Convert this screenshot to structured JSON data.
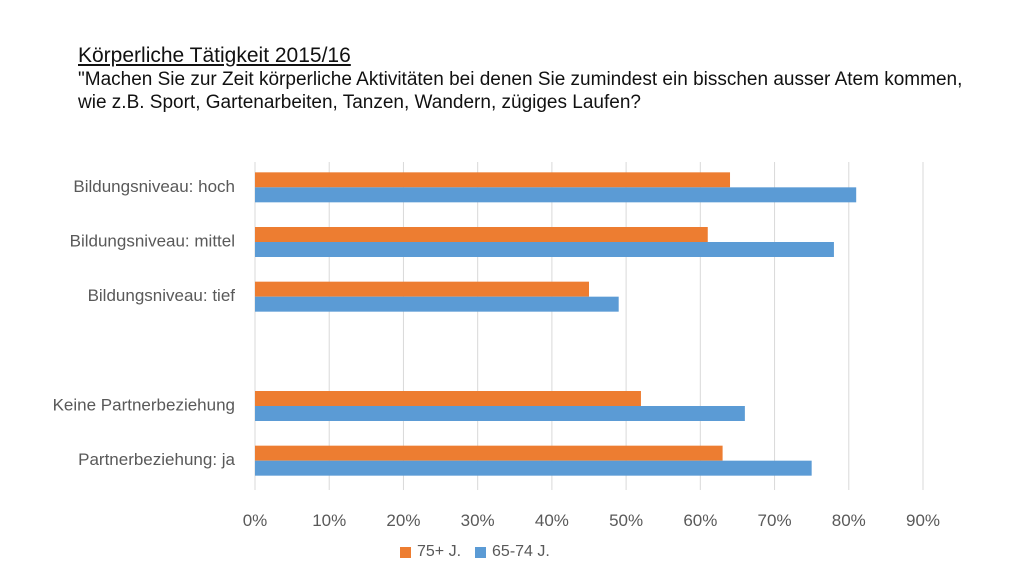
{
  "header": {
    "title": "Körperliche Tätigkeit 2015/16",
    "subtitle": "\"Machen Sie zur Zeit körperliche Aktivitäten bei denen Sie zumindest ein bisschen ausser Atem kommen, wie z.B. Sport, Gartenarbeiten, Tanzen, Wandern, zügiges Laufen?"
  },
  "colors": {
    "series_75_plus": "#ED7D31",
    "series_65_74": "#5B9BD5",
    "gridline": "#D9D9D9"
  },
  "chart_data": {
    "type": "bar",
    "orientation": "horizontal",
    "categories": [
      "Bildungsniveau: hoch",
      "Bildungsniveau: mittel",
      "Bildungsniveau: tief",
      "",
      "Keine Partnerbeziehung",
      "Partnerbeziehung: ja"
    ],
    "series": [
      {
        "name": "75+ J.",
        "values": [
          0.64,
          0.61,
          0.45,
          null,
          0.52,
          0.63
        ]
      },
      {
        "name": "65-74 J.",
        "values": [
          0.81,
          0.78,
          0.49,
          null,
          0.66,
          0.75
        ]
      }
    ],
    "xlim": [
      0,
      0.9
    ],
    "xticks": [
      "0%",
      "10%",
      "20%",
      "30%",
      "40%",
      "50%",
      "60%",
      "70%",
      "80%",
      "90%"
    ],
    "xlabel": "",
    "ylabel": "",
    "grid": true,
    "legend_position": "bottom"
  }
}
